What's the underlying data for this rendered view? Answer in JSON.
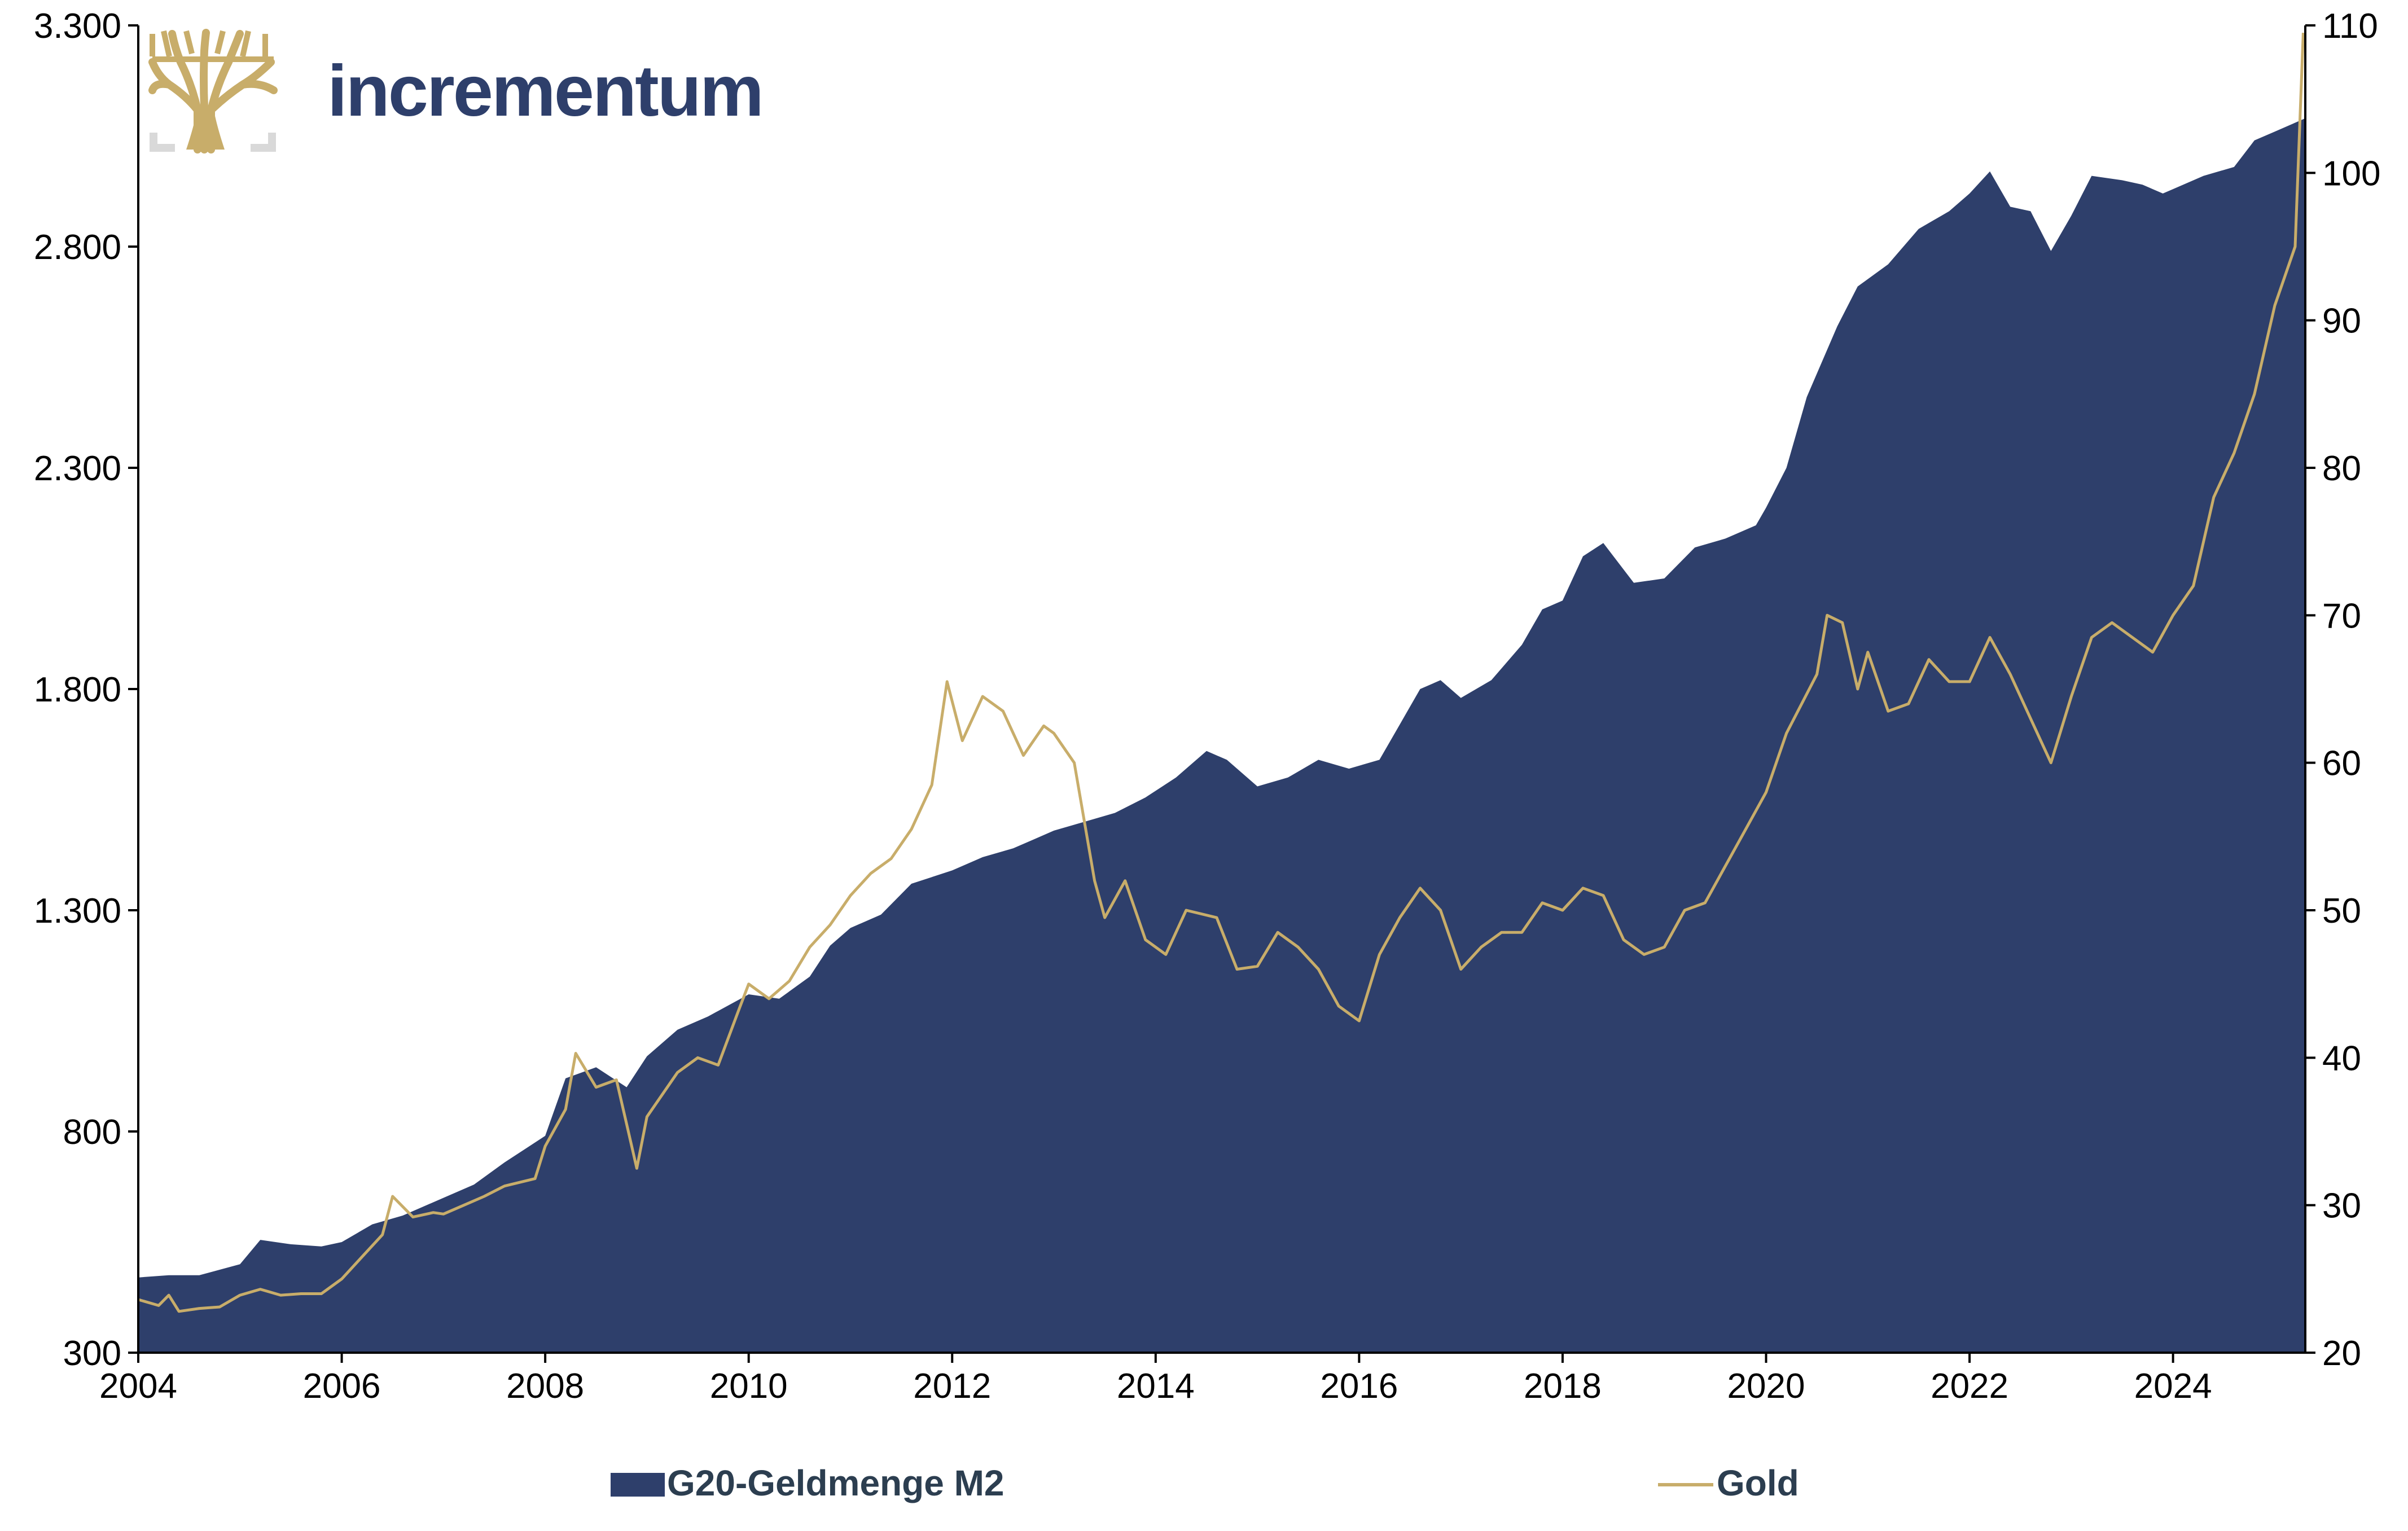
{
  "brand": {
    "name": "incrementum"
  },
  "colors": {
    "area": "#2e3f6b",
    "gold": "#c8ad6a",
    "brand_text": "#2e3f6b",
    "axis": "#000000"
  },
  "chart_data": {
    "type": "area",
    "xlim": [
      2004,
      2025.3
    ],
    "x_ticks": [
      "2004",
      "2006",
      "2008",
      "2010",
      "2012",
      "2014",
      "2016",
      "2018",
      "2020",
      "2022",
      "2024"
    ],
    "y_left": {
      "ylim": [
        300,
        3300
      ],
      "ticks": [
        "300",
        "800",
        "1.300",
        "1.800",
        "2.300",
        "2.800",
        "3.300"
      ]
    },
    "y_right": {
      "ylim": [
        20,
        110
      ],
      "ticks": [
        "20",
        "30",
        "40",
        "50",
        "60",
        "70",
        "80",
        "90",
        "100",
        "110"
      ]
    },
    "legend_position": "bottom",
    "series": [
      {
        "name": "G20-Geldmenge M2",
        "type": "area",
        "axis": "left",
        "points": [
          [
            2004.0,
            470
          ],
          [
            2004.3,
            475
          ],
          [
            2004.6,
            475
          ],
          [
            2005.0,
            500
          ],
          [
            2005.2,
            555
          ],
          [
            2005.5,
            545
          ],
          [
            2005.8,
            540
          ],
          [
            2006.0,
            550
          ],
          [
            2006.3,
            590
          ],
          [
            2006.6,
            610
          ],
          [
            2007.0,
            650
          ],
          [
            2007.3,
            680
          ],
          [
            2007.6,
            730
          ],
          [
            2008.0,
            790
          ],
          [
            2008.2,
            920
          ],
          [
            2008.5,
            945
          ],
          [
            2008.8,
            900
          ],
          [
            2009.0,
            970
          ],
          [
            2009.3,
            1030
          ],
          [
            2009.6,
            1060
          ],
          [
            2010.0,
            1110
          ],
          [
            2010.3,
            1100
          ],
          [
            2010.6,
            1150
          ],
          [
            2010.8,
            1220
          ],
          [
            2011.0,
            1260
          ],
          [
            2011.3,
            1290
          ],
          [
            2011.6,
            1360
          ],
          [
            2012.0,
            1390
          ],
          [
            2012.3,
            1420
          ],
          [
            2012.6,
            1440
          ],
          [
            2012.8,
            1460
          ],
          [
            2013.0,
            1480
          ],
          [
            2013.3,
            1500
          ],
          [
            2013.6,
            1520
          ],
          [
            2013.9,
            1555
          ],
          [
            2014.2,
            1600
          ],
          [
            2014.5,
            1660
          ],
          [
            2014.7,
            1640
          ],
          [
            2015.0,
            1580
          ],
          [
            2015.3,
            1600
          ],
          [
            2015.6,
            1640
          ],
          [
            2015.9,
            1620
          ],
          [
            2016.2,
            1640
          ],
          [
            2016.4,
            1720
          ],
          [
            2016.6,
            1800
          ],
          [
            2016.8,
            1820
          ],
          [
            2017.0,
            1780
          ],
          [
            2017.3,
            1820
          ],
          [
            2017.6,
            1900
          ],
          [
            2017.8,
            1980
          ],
          [
            2018.0,
            2000
          ],
          [
            2018.2,
            2100
          ],
          [
            2018.4,
            2130
          ],
          [
            2018.7,
            2040
          ],
          [
            2019.0,
            2050
          ],
          [
            2019.3,
            2120
          ],
          [
            2019.6,
            2140
          ],
          [
            2019.9,
            2170
          ],
          [
            2020.0,
            2210
          ],
          [
            2020.2,
            2300
          ],
          [
            2020.4,
            2460
          ],
          [
            2020.7,
            2620
          ],
          [
            2020.9,
            2710
          ],
          [
            2021.2,
            2760
          ],
          [
            2021.5,
            2840
          ],
          [
            2021.8,
            2880
          ],
          [
            2022.0,
            2920
          ],
          [
            2022.2,
            2970
          ],
          [
            2022.4,
            2890
          ],
          [
            2022.6,
            2880
          ],
          [
            2022.8,
            2790
          ],
          [
            2023.0,
            2870
          ],
          [
            2023.2,
            2960
          ],
          [
            2023.5,
            2950
          ],
          [
            2023.7,
            2940
          ],
          [
            2023.9,
            2920
          ],
          [
            2024.0,
            2930
          ],
          [
            2024.3,
            2960
          ],
          [
            2024.6,
            2980
          ],
          [
            2024.8,
            3040
          ],
          [
            2025.0,
            3060
          ],
          [
            2025.3,
            3090
          ]
        ]
      },
      {
        "name": "Gold",
        "type": "line",
        "axis": "right",
        "points": [
          [
            2004.0,
            23.6
          ],
          [
            2004.2,
            23.2
          ],
          [
            2004.3,
            23.9
          ],
          [
            2004.4,
            22.8
          ],
          [
            2004.6,
            23.0
          ],
          [
            2004.8,
            23.1
          ],
          [
            2005.0,
            23.9
          ],
          [
            2005.2,
            24.3
          ],
          [
            2005.4,
            23.9
          ],
          [
            2005.6,
            24.0
          ],
          [
            2005.8,
            24.0
          ],
          [
            2006.0,
            25.0
          ],
          [
            2006.2,
            26.5
          ],
          [
            2006.4,
            28.0
          ],
          [
            2006.5,
            30.6
          ],
          [
            2006.7,
            29.2
          ],
          [
            2006.9,
            29.5
          ],
          [
            2007.0,
            29.4
          ],
          [
            2007.2,
            30.0
          ],
          [
            2007.4,
            30.6
          ],
          [
            2007.6,
            31.3
          ],
          [
            2007.9,
            31.8
          ],
          [
            2008.0,
            34.0
          ],
          [
            2008.2,
            36.5
          ],
          [
            2008.3,
            40.3
          ],
          [
            2008.5,
            38.0
          ],
          [
            2008.7,
            38.5
          ],
          [
            2008.8,
            35.5
          ],
          [
            2008.9,
            32.5
          ],
          [
            2009.0,
            36.0
          ],
          [
            2009.3,
            39.0
          ],
          [
            2009.5,
            40.0
          ],
          [
            2009.7,
            39.5
          ],
          [
            2009.9,
            43.2
          ],
          [
            2010.0,
            45.0
          ],
          [
            2010.2,
            44.0
          ],
          [
            2010.4,
            45.2
          ],
          [
            2010.6,
            47.5
          ],
          [
            2010.8,
            49.0
          ],
          [
            2011.0,
            51.0
          ],
          [
            2011.2,
            52.5
          ],
          [
            2011.4,
            53.5
          ],
          [
            2011.6,
            55.5
          ],
          [
            2011.8,
            58.5
          ],
          [
            2011.95,
            65.5
          ],
          [
            2012.1,
            61.5
          ],
          [
            2012.3,
            64.5
          ],
          [
            2012.5,
            63.5
          ],
          [
            2012.7,
            60.5
          ],
          [
            2012.9,
            62.5
          ],
          [
            2013.0,
            62.0
          ],
          [
            2013.2,
            60.0
          ],
          [
            2013.4,
            52.0
          ],
          [
            2013.5,
            49.5
          ],
          [
            2013.7,
            52.0
          ],
          [
            2013.9,
            48.0
          ],
          [
            2014.1,
            47.0
          ],
          [
            2014.3,
            50.0
          ],
          [
            2014.6,
            49.5
          ],
          [
            2014.8,
            46.0
          ],
          [
            2015.0,
            46.2
          ],
          [
            2015.2,
            48.5
          ],
          [
            2015.4,
            47.5
          ],
          [
            2015.6,
            46.0
          ],
          [
            2015.8,
            43.5
          ],
          [
            2016.0,
            42.5
          ],
          [
            2016.2,
            47.0
          ],
          [
            2016.4,
            49.5
          ],
          [
            2016.6,
            51.5
          ],
          [
            2016.8,
            50.0
          ],
          [
            2017.0,
            46.0
          ],
          [
            2017.2,
            47.5
          ],
          [
            2017.4,
            48.5
          ],
          [
            2017.6,
            48.5
          ],
          [
            2017.8,
            50.5
          ],
          [
            2018.0,
            50.0
          ],
          [
            2018.2,
            51.5
          ],
          [
            2018.4,
            51.0
          ],
          [
            2018.6,
            48.0
          ],
          [
            2018.8,
            47.0
          ],
          [
            2019.0,
            47.5
          ],
          [
            2019.2,
            50.0
          ],
          [
            2019.4,
            50.5
          ],
          [
            2019.6,
            53.0
          ],
          [
            2019.8,
            55.5
          ],
          [
            2020.0,
            58.0
          ],
          [
            2020.2,
            62.0
          ],
          [
            2020.5,
            66.0
          ],
          [
            2020.6,
            70.0
          ],
          [
            2020.75,
            69.5
          ],
          [
            2020.9,
            65.0
          ],
          [
            2021.0,
            67.5
          ],
          [
            2021.2,
            63.5
          ],
          [
            2021.4,
            64.0
          ],
          [
            2021.6,
            67.0
          ],
          [
            2021.8,
            65.5
          ],
          [
            2022.0,
            65.5
          ],
          [
            2022.2,
            68.5
          ],
          [
            2022.4,
            66.0
          ],
          [
            2022.6,
            63.0
          ],
          [
            2022.8,
            60.0
          ],
          [
            2023.0,
            64.5
          ],
          [
            2023.2,
            68.5
          ],
          [
            2023.4,
            69.5
          ],
          [
            2023.6,
            68.5
          ],
          [
            2023.8,
            67.5
          ],
          [
            2024.0,
            70.0
          ],
          [
            2024.2,
            72.0
          ],
          [
            2024.4,
            78.0
          ],
          [
            2024.6,
            81.0
          ],
          [
            2024.8,
            85.0
          ],
          [
            2025.0,
            91.0
          ],
          [
            2025.2,
            95.0
          ],
          [
            2025.28,
            109.5
          ]
        ]
      }
    ]
  }
}
